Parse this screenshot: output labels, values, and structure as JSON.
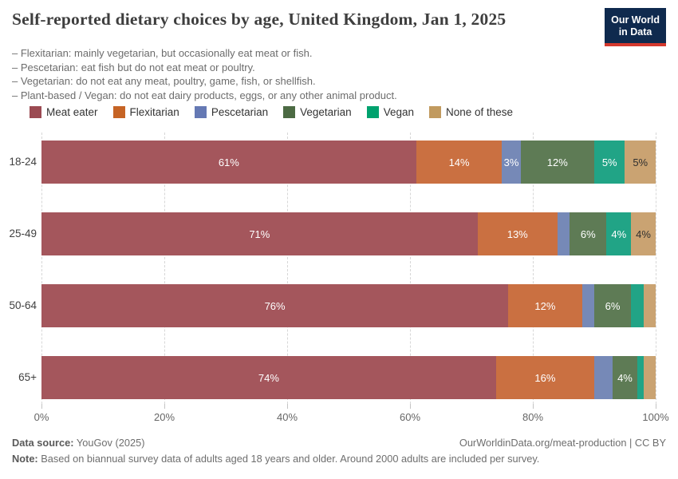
{
  "header": {
    "title": "Self-reported dietary choices by age, United Kingdom, Jan 1, 2025",
    "logo": {
      "line1": "Our World",
      "line2": "in Data",
      "bg_color": "#0f2a4e",
      "accent_color": "#d4382d"
    },
    "definitions": [
      "– Flexitarian: mainly vegetarian, but occasionally eat meat or fish.",
      "– Pescetarian: eat fish but do not eat meat or poultry.",
      "– Vegetarian: do not eat any meat, poultry, game, fish, or shellfish.",
      "– Plant-based / Vegan: do not eat dairy products, eggs, or any other animal product."
    ]
  },
  "legend": [
    {
      "label": "Meat eater",
      "color": "#9b4a52"
    },
    {
      "label": "Flexitarian",
      "color": "#c66425"
    },
    {
      "label": "Pescetarian",
      "color": "#6579b4"
    },
    {
      "label": "Vegetarian",
      "color": "#4c6a43"
    },
    {
      "label": "Vegan",
      "color": "#00a26e"
    },
    {
      "label": "None of these",
      "color": "#c19a5f"
    }
  ],
  "chart_data": {
    "type": "bar",
    "subtype": "horizontal-stacked",
    "title": "Self-reported dietary choices by age, United Kingdom, Jan 1, 2025",
    "categories": [
      "18-24",
      "25-49",
      "50-64",
      "65+"
    ],
    "series": [
      {
        "name": "Meat eater",
        "color": "#a4565c",
        "label_color": "#ffffff",
        "values": [
          61,
          71,
          76,
          74
        ]
      },
      {
        "name": "Flexitarian",
        "color": "#ca7041",
        "label_color": "#ffffff",
        "values": [
          14,
          13,
          12,
          16
        ]
      },
      {
        "name": "Pescetarian",
        "color": "#7689b7",
        "label_color": "#ffffff",
        "values": [
          3,
          2,
          2,
          3
        ]
      },
      {
        "name": "Vegetarian",
        "color": "#5e7b55",
        "label_color": "#ffffff",
        "values": [
          12,
          6,
          6,
          4
        ]
      },
      {
        "name": "Vegan",
        "color": "#21a486",
        "label_color": "#ffffff",
        "values": [
          5,
          4,
          2,
          1
        ]
      },
      {
        "name": "None of these",
        "color": "#caa372",
        "label_color": "#2f2f2f",
        "values": [
          5,
          4,
          2,
          2
        ]
      }
    ],
    "bar_labels": [
      [
        "61%",
        "14%",
        "3%",
        "12%",
        "5%",
        "5%"
      ],
      [
        "71%",
        "13%",
        "",
        "6%",
        "4%",
        "4%"
      ],
      [
        "76%",
        "12%",
        "",
        "6%",
        "",
        ""
      ],
      [
        "74%",
        "16%",
        "",
        "4%",
        "",
        ""
      ]
    ],
    "x_ticks": [
      "0%",
      "20%",
      "40%",
      "60%",
      "80%",
      "100%"
    ],
    "xlim": [
      0,
      100
    ],
    "grid": "dashed-vertical",
    "legend_position": "top"
  },
  "footer": {
    "source_label": "Data source:",
    "source_text": " YouGov (2025)",
    "link_text": "OurWorldinData.org/meat-production | CC BY",
    "note_label": "Note:",
    "note_text": " Based on biannual survey data of adults aged 18 years and older. Around 2000 adults are included per survey."
  }
}
